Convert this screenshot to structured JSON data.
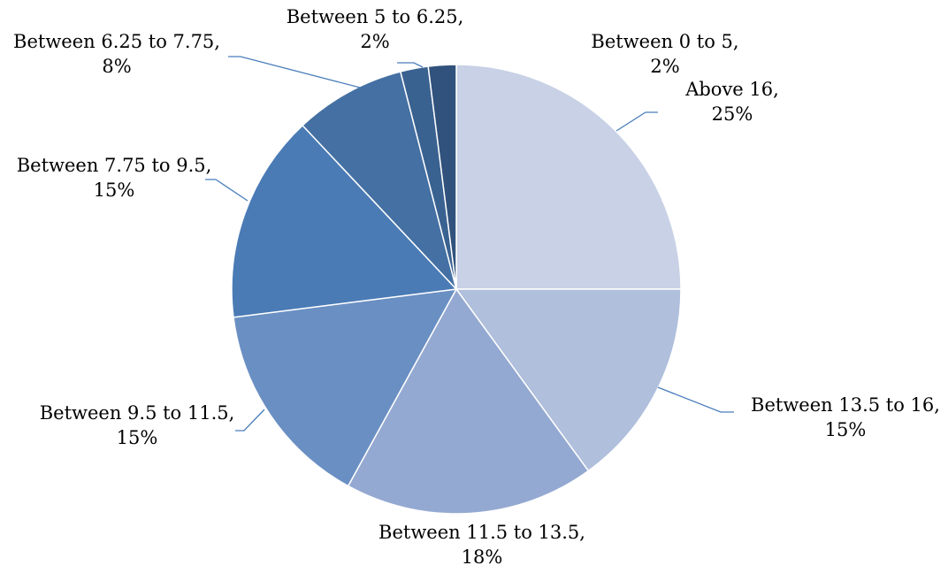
{
  "chart_data": {
    "type": "pie",
    "title": "",
    "slices": [
      {
        "name": "Above 16",
        "value": 25,
        "color": "#c8d1e5",
        "label_line1": "Above 16,",
        "label_line2": "25%"
      },
      {
        "name": "Between 13.5 to 16",
        "value": 15,
        "color": "#afbfdc",
        "label_line1": "Between 13.5 to 16,",
        "label_line2": "15%"
      },
      {
        "name": "Between 11.5 to 13.5",
        "value": 18,
        "color": "#94a9d1",
        "label_line1": "Between 11.5 to 13.5,",
        "label_line2": "18%"
      },
      {
        "name": "Between 9.5 to 11.5",
        "value": 15,
        "color": "#6a8fc3",
        "label_line1": "Between 9.5 to 11.5,",
        "label_line2": "15%"
      },
      {
        "name": "Between 7.75 to 9.5",
        "value": 15,
        "color": "#4a7bb5",
        "label_line1": "Between 7.75 to 9.5,",
        "label_line2": "15%"
      },
      {
        "name": "Between 6.25 to 7.75",
        "value": 8,
        "color": "#4470a3",
        "label_line1": "Between 6.25 to 7.75,",
        "label_line2": "8%"
      },
      {
        "name": "Between 5 to 6.25",
        "value": 2,
        "color": "#3a6291",
        "label_line1": "Between 5 to 6.25,",
        "label_line2": "2%"
      },
      {
        "name": "Between 0 to 5",
        "value": 2,
        "color": "#31527c",
        "label_line1": "Between 0 to 5,",
        "label_line2": "2%"
      }
    ]
  }
}
